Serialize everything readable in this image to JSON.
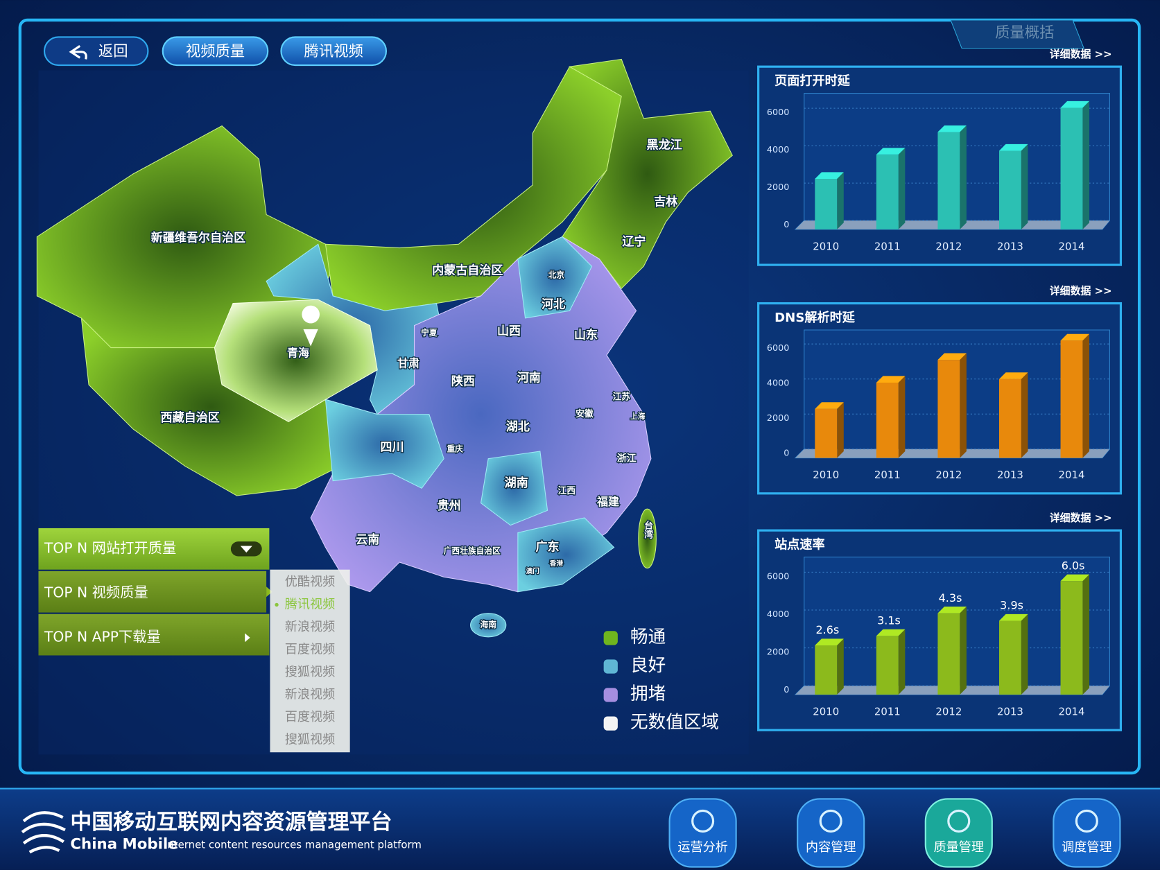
{
  "header": {
    "buttons": [
      "返回",
      "视频质量",
      "腾讯视频"
    ],
    "tab": "质量概括"
  },
  "map": {
    "regions": [
      "新疆维吾尔自治区",
      "西藏自治区",
      "青海",
      "内蒙古自治区",
      "黑龙江",
      "吉林",
      "辽宁",
      "北京",
      "河北",
      "宁夏",
      "甘肃",
      "山西",
      "山东",
      "陕西",
      "河南",
      "江苏",
      "安徽",
      "上海",
      "湖北",
      "四川",
      "重庆",
      "浙江",
      "湖南",
      "江西",
      "福建",
      "贵州",
      "云南",
      "广西壮族自治区",
      "广东",
      "台湾",
      "澳门",
      "香港",
      "海南"
    ],
    "legend": [
      "畅通",
      "良好",
      "拥堵",
      "无数值区域"
    ]
  },
  "menu": {
    "items": [
      "TOP  N 网站打开质量",
      "TOP  N 视频质量",
      "TOP  N APP下载量"
    ],
    "submenu": [
      "优酷视频",
      "腾讯视频",
      "新浪视频",
      "百度视频",
      "搜狐视频",
      "新浪视频",
      "百度视频",
      "搜狐视频"
    ]
  },
  "panels": [
    {
      "link": "详细数据 >>",
      "chart": {
        "type": "bar",
        "title": "页面打开时延",
        "categories": [
          "2010",
          "2011",
          "2012",
          "2013",
          "2014"
        ],
        "values": [
          2700,
          4000,
          5200,
          4200,
          6500
        ],
        "color": "#2cc0b3",
        "ylim": [
          0,
          6800
        ],
        "yticks": [
          0,
          2000,
          4000,
          6000
        ]
      }
    },
    {
      "link": "详细数据 >>",
      "chart": {
        "type": "bar",
        "title": "DNS解析时延",
        "categories": [
          "2010",
          "2011",
          "2012",
          "2013",
          "2014"
        ],
        "values": [
          2800,
          4300,
          5600,
          4500,
          6700
        ],
        "color": "#e8890c",
        "ylim": [
          0,
          6800
        ],
        "yticks": [
          0,
          2000,
          4000,
          6000
        ]
      }
    },
    {
      "link": "详细数据 >>",
      "chart": {
        "type": "bar",
        "title": "站点速率",
        "categories": [
          "2010",
          "2011",
          "2012",
          "2013",
          "2014"
        ],
        "values": [
          2600,
          3100,
          4300,
          3900,
          6000
        ],
        "value_labels": [
          "2.6s",
          "3.1s",
          "4.3s",
          "3.9s",
          "6.0s"
        ],
        "color": "#8cba1c",
        "ylim": [
          0,
          6800
        ],
        "yticks": [
          0,
          2000,
          4000,
          6000
        ]
      }
    }
  ],
  "footer": {
    "title_cn": "中国移动互联网内容资源管理平台",
    "brand_en": "China Mobile",
    "title_en": "Internet content resources management platform",
    "nav": [
      "运营分析",
      "内容管理",
      "质量管理",
      "调度管理"
    ]
  }
}
